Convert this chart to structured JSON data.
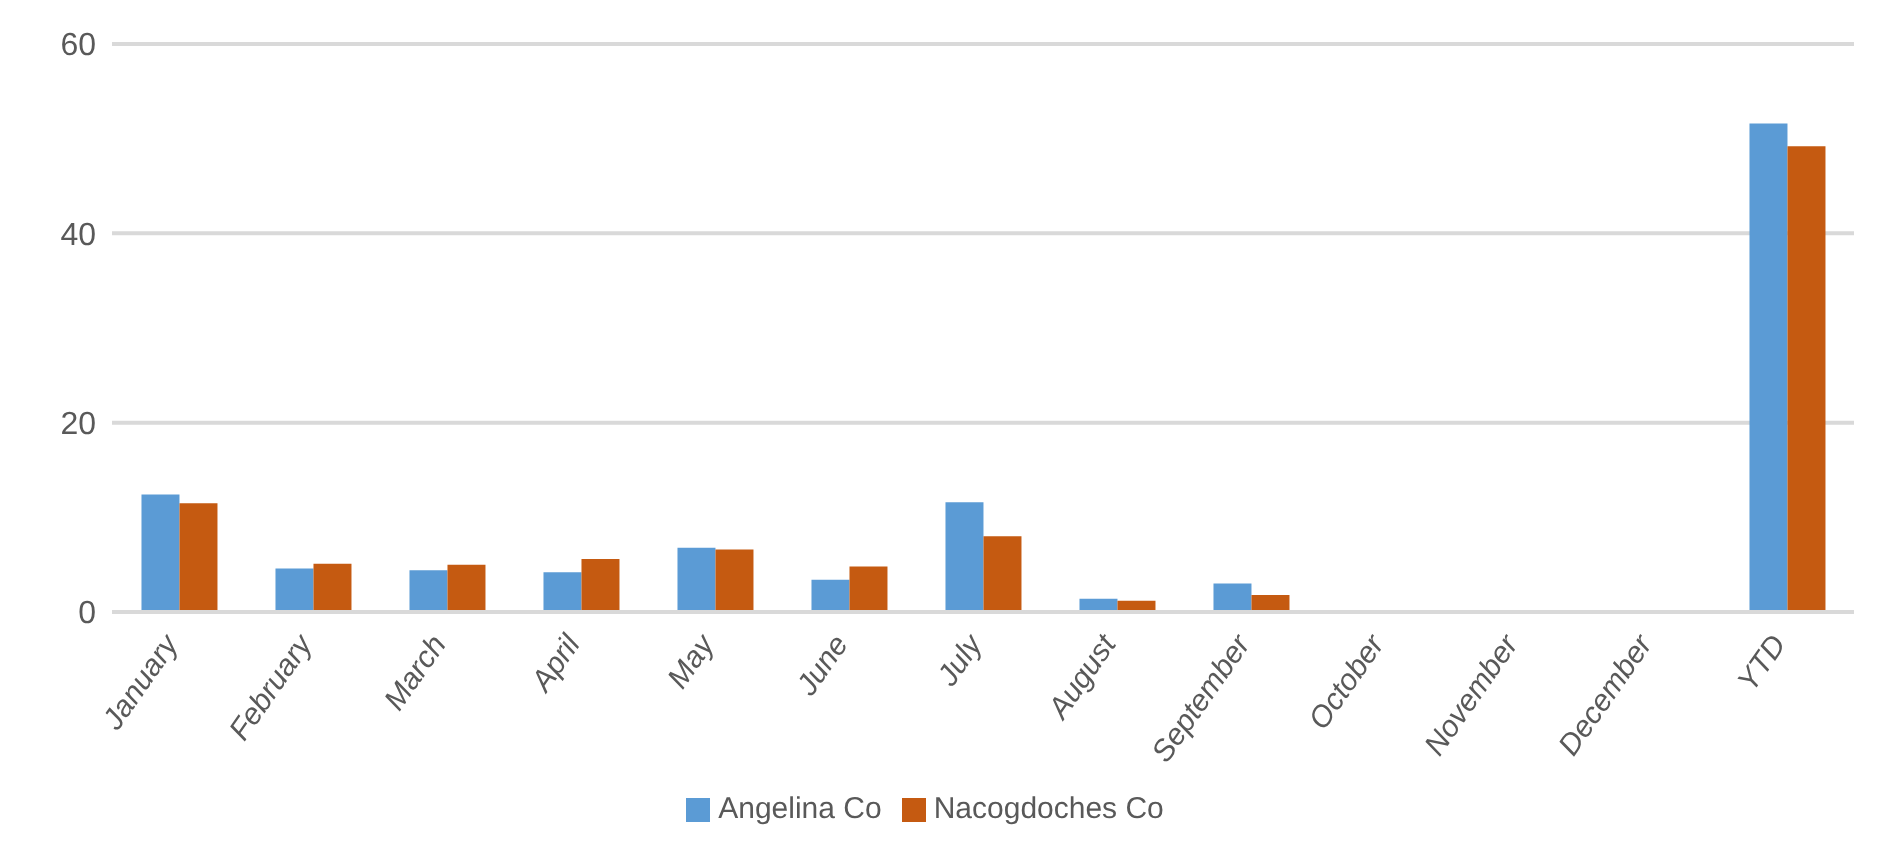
{
  "chart_data": {
    "type": "bar",
    "categories": [
      "January",
      "February",
      "March",
      "April",
      "May",
      "June",
      "July",
      "August",
      "September",
      "October",
      "November",
      "December",
      "YTD"
    ],
    "series": [
      {
        "name": "Angelina Co",
        "color": "#5b9bd5",
        "values": [
          12.4,
          4.6,
          4.4,
          4.2,
          6.8,
          3.4,
          11.6,
          1.4,
          3.0,
          null,
          null,
          null,
          51.6
        ]
      },
      {
        "name": "Nacogdoches Co",
        "color": "#c55a11",
        "values": [
          11.5,
          5.1,
          5.0,
          5.6,
          6.6,
          4.8,
          8.0,
          1.2,
          1.8,
          null,
          null,
          null,
          49.2
        ]
      }
    ],
    "ylim": [
      0,
      60
    ],
    "yticks": [
      0,
      20,
      40,
      60
    ],
    "grid": "y",
    "legend": "bottom"
  }
}
